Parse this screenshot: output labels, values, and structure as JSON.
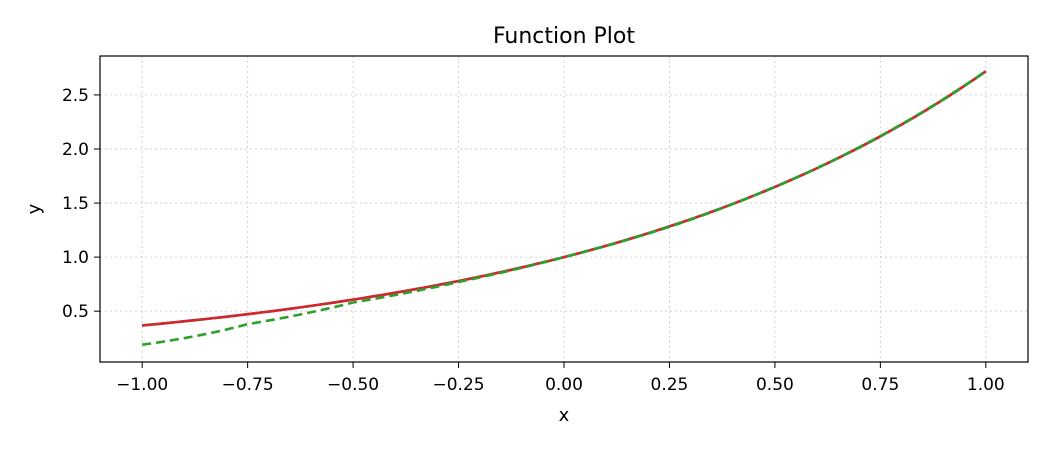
{
  "chart_data": {
    "type": "line",
    "title": "Function Plot",
    "xlabel": "x",
    "ylabel": "y",
    "xlim": [
      -1.1,
      1.1
    ],
    "ylim": [
      0.03,
      2.86
    ],
    "grid": true,
    "x_ticks": [
      -1.0,
      -0.75,
      -0.5,
      -0.25,
      0.0,
      0.25,
      0.5,
      0.75,
      1.0
    ],
    "x_tick_labels": [
      "−1.00",
      "−0.75",
      "−0.50",
      "−0.25",
      "0.00",
      "0.25",
      "0.50",
      "0.75",
      "1.00"
    ],
    "y_ticks": [
      0.5,
      1.0,
      1.5,
      2.0,
      2.5
    ],
    "y_tick_labels": [
      "0.5",
      "1.0",
      "1.5",
      "2.0",
      "2.5"
    ],
    "x": [
      -1.0,
      -0.75,
      -0.5,
      -0.25,
      0.0,
      0.25,
      0.5,
      0.75,
      1.0
    ],
    "series": [
      {
        "color": "#1f77b4",
        "style": "solid",
        "values": [
          0.368,
          0.472,
          0.607,
          0.779,
          1.0,
          1.284,
          1.649,
          2.117,
          2.718
        ]
      },
      {
        "color": "#d62728",
        "style": "solid",
        "values": [
          0.368,
          0.472,
          0.607,
          0.779,
          1.0,
          1.284,
          1.649,
          2.117,
          2.718
        ]
      },
      {
        "color": "#2ca02c",
        "style": "dashed",
        "values": [
          0.19,
          0.38,
          0.58,
          0.77,
          1.0,
          1.28,
          1.65,
          2.12,
          2.72
        ]
      }
    ]
  }
}
